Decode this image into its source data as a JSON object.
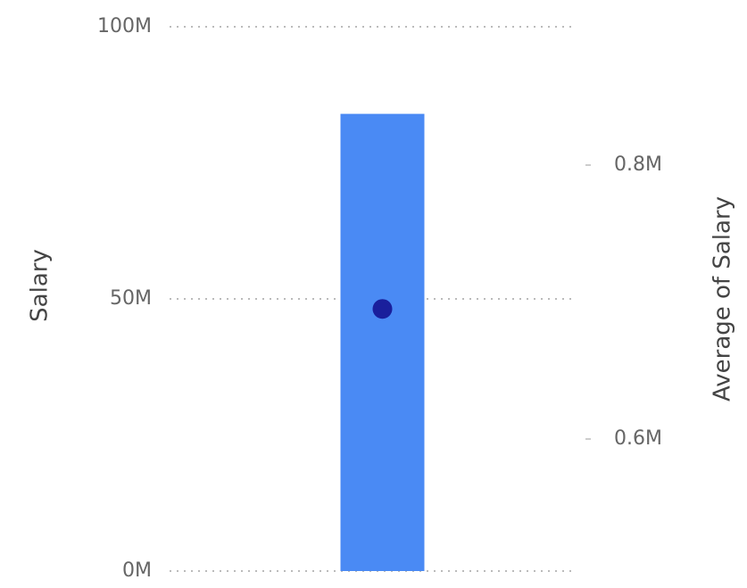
{
  "chart_data": {
    "type": "combo",
    "categories": [
      null
    ],
    "series": [
      {
        "name": "Salary",
        "type": "bar",
        "color": "#4a8af4",
        "values": [
          84000000
        ]
      },
      {
        "name": "Average of Salary",
        "type": "scatter",
        "axis": "y2",
        "color": "#1a1f9c",
        "values": [
          695000
        ]
      }
    ],
    "ylim": [
      0,
      100000000
    ],
    "yticks": [
      {
        "value": 0,
        "label": "0M"
      },
      {
        "value": 50000000,
        "label": "50M"
      },
      {
        "value": 100000000,
        "label": "100M"
      }
    ],
    "y2lim": [
      503600,
      901000
    ],
    "y2ticks": [
      {
        "value": 600000,
        "label": "0.6M"
      },
      {
        "value": 800000,
        "label": "0.8M"
      }
    ],
    "grid": true
  }
}
